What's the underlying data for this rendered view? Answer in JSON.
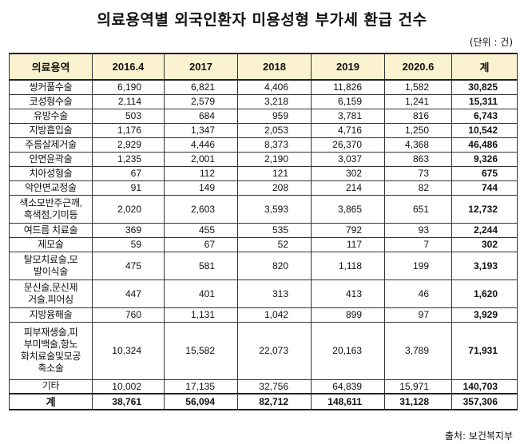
{
  "title": "의료용역별 외국인환자 미용성형 부가세 환급 건수",
  "unit": "(단위 : 건)",
  "headers": [
    "의료용역",
    "2016.4",
    "2017",
    "2018",
    "2019",
    "2020.6",
    "계"
  ],
  "rows": [
    {
      "name": "쌍커풀수술",
      "v": [
        "6,190",
        "6,821",
        "4,406",
        "11,826",
        "1,582"
      ],
      "total": "30,825"
    },
    {
      "name": "코성형수술",
      "v": [
        "2,114",
        "2,579",
        "3,218",
        "6,159",
        "1,241"
      ],
      "total": "15,311"
    },
    {
      "name": "유방수술",
      "v": [
        "503",
        "684",
        "959",
        "3,781",
        "816"
      ],
      "total": "6,743"
    },
    {
      "name": "지방흡입술",
      "v": [
        "1,176",
        "1,347",
        "2,053",
        "4,716",
        "1,250"
      ],
      "total": "10,542"
    },
    {
      "name": "주름살제거술",
      "v": [
        "2,929",
        "4,446",
        "8,373",
        "26,370",
        "4,368"
      ],
      "total": "46,486"
    },
    {
      "name": "안면윤곽술",
      "v": [
        "1,235",
        "2,001",
        "2,190",
        "3,037",
        "863"
      ],
      "total": "9,326"
    },
    {
      "name": "치아성형술",
      "v": [
        "67",
        "112",
        "121",
        "302",
        "73"
      ],
      "total": "675"
    },
    {
      "name": "악안면교정술",
      "v": [
        "91",
        "149",
        "208",
        "214",
        "82"
      ],
      "total": "744"
    },
    {
      "name": "색소모반주근깨,흑색점,기미등",
      "v": [
        "2,020",
        "2,603",
        "3,593",
        "3,865",
        "651"
      ],
      "total": "12,732"
    },
    {
      "name": "여드름 치료술",
      "v": [
        "369",
        "455",
        "535",
        "792",
        "93"
      ],
      "total": "2,244"
    },
    {
      "name": "제모술",
      "v": [
        "59",
        "67",
        "52",
        "117",
        "7"
      ],
      "total": "302"
    },
    {
      "name": "탈모치료술,모발이식술",
      "v": [
        "475",
        "581",
        "820",
        "1,118",
        "199"
      ],
      "total": "3,193"
    },
    {
      "name": "문신술,문신제거술,피어싱",
      "v": [
        "447",
        "401",
        "313",
        "413",
        "46"
      ],
      "total": "1,620"
    },
    {
      "name": "지방융해술",
      "v": [
        "760",
        "1,131",
        "1,042",
        "899",
        "97"
      ],
      "total": "3,929"
    },
    {
      "name": "피부재생술,피부미백술,항노화치료술및모공축소술",
      "v": [
        "10,324",
        "15,582",
        "22,073",
        "20,163",
        "3,789"
      ],
      "total": "71,931"
    },
    {
      "name": "기타",
      "v": [
        "10,002",
        "17,135",
        "32,756",
        "64,839",
        "15,971"
      ],
      "total": "140,703"
    }
  ],
  "total_row": {
    "name": "계",
    "v": [
      "38,761",
      "56,094",
      "82,712",
      "148,611",
      "31,128"
    ],
    "total": "357,306"
  },
  "source": "출처: 보건복지부"
}
